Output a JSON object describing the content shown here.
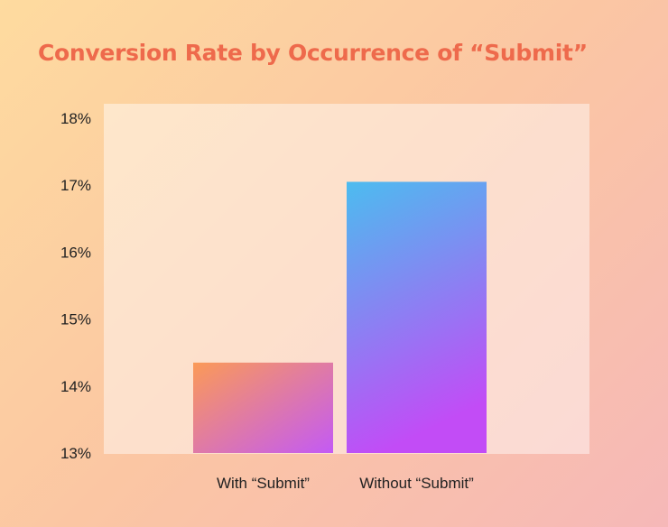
{
  "chart_data": {
    "type": "bar",
    "title": "Conversion Rate by Occurrence of “Submit”",
    "xlabel": "",
    "ylabel": "",
    "categories": [
      "With “Submit”",
      "Without “Submit”"
    ],
    "values": [
      14.35,
      17.05
    ],
    "ylim": [
      13,
      18
    ],
    "yticks": [
      "13%",
      "14%",
      "15%",
      "16%",
      "17%",
      "18%"
    ],
    "ytick_values": [
      13,
      14,
      15,
      16,
      17,
      18
    ],
    "grid": false,
    "legend": "none",
    "bar_gradients": [
      [
        "#fb9a57",
        "#c35af5"
      ],
      [
        "#4cbcef",
        "#c24cf6"
      ]
    ]
  },
  "colors": {
    "title": "#ee6a4c",
    "text": "#222222"
  }
}
